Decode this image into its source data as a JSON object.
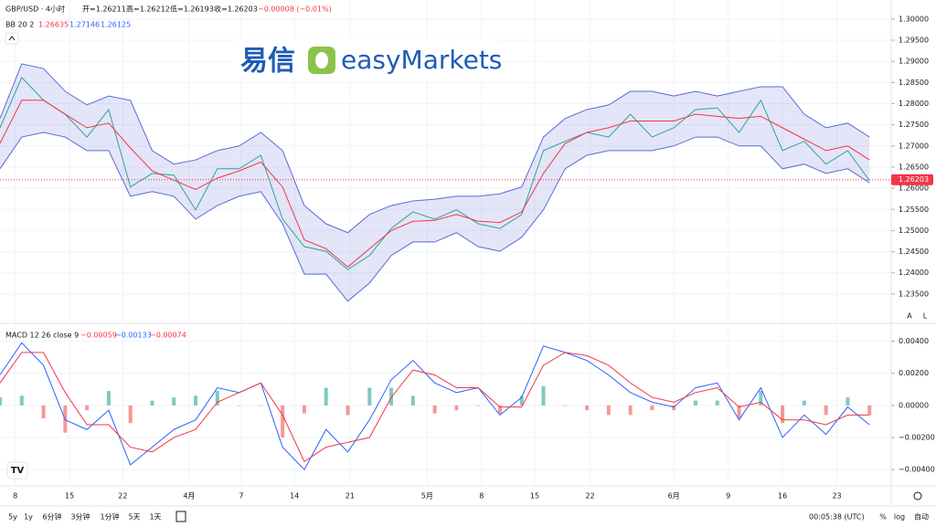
{
  "header": {
    "symbol": "GBP/USD · 4小时",
    "open": "开=1.26211",
    "high": "高=1.26212",
    "low": "低=1.26193",
    "close": "收=1.26203",
    "change": "−0.00008 (−0.01%)"
  },
  "bb_legend": {
    "name": "BB 20 2",
    "values": [
      "1.26635",
      "1.27146",
      "1.26125"
    ]
  },
  "macd_legend": {
    "name": "MACD 12 26 close 9",
    "values": [
      "−0.00059",
      "−0.00133",
      "−0.00074"
    ]
  },
  "logo": {
    "chinese": "易信",
    "brand": "easyMarkets"
  },
  "scale_buttons": [
    "A",
    "L"
  ],
  "toolbar": {
    "ranges": [
      "5y",
      "1y",
      "6分钟",
      "3分钟",
      "1分钟",
      "5天",
      "1天"
    ],
    "time": "00:05:38 (UTC)",
    "options": [
      "%",
      "log",
      "自动"
    ]
  },
  "chart_data": [
    {
      "type": "line",
      "last_price": 1.26203,
      "last_price_color": "#f23645",
      "band_fill": "rgba(120,123,220,0.2)",
      "x": [
        0,
        2,
        4,
        6,
        8,
        10,
        12,
        14,
        16,
        18,
        20,
        22,
        24,
        26,
        28,
        30,
        32,
        34,
        36,
        38,
        40,
        42,
        44,
        46,
        48,
        50,
        52,
        54,
        56,
        58,
        60,
        62,
        64,
        66,
        68,
        70,
        72,
        74,
        76,
        78,
        80
      ],
      "xlim": [
        0,
        82
      ],
      "xticks": [
        {
          "value": 1.4,
          "label": "8"
        },
        {
          "value": 6.4,
          "label": "15"
        },
        {
          "value": 11.3,
          "label": "22"
        },
        {
          "value": 17.4,
          "label": "4月"
        },
        {
          "value": 22.2,
          "label": "7"
        },
        {
          "value": 27.1,
          "label": "14"
        },
        {
          "value": 32.2,
          "label": "21"
        },
        {
          "value": 39.3,
          "label": "5月"
        },
        {
          "value": 44.3,
          "label": "8"
        },
        {
          "value": 49.2,
          "label": "15"
        },
        {
          "value": 54.3,
          "label": "22"
        },
        {
          "value": 62,
          "label": "6月"
        },
        {
          "value": 67,
          "label": "9"
        },
        {
          "value": 72,
          "label": "16"
        },
        {
          "value": 77,
          "label": "23"
        }
      ],
      "ylim": [
        1.2285,
        1.3045
      ],
      "yticks": [
        {
          "value": 1.3,
          "label": "1.30000"
        },
        {
          "value": 1.295,
          "label": "1.29500"
        },
        {
          "value": 1.29,
          "label": "1.29000"
        },
        {
          "value": 1.285,
          "label": "1.28500"
        },
        {
          "value": 1.28,
          "label": "1.28000"
        },
        {
          "value": 1.275,
          "label": "1.27500"
        },
        {
          "value": 1.27,
          "label": "1.27000"
        },
        {
          "value": 1.265,
          "label": "1.26500"
        },
        {
          "value": 1.26,
          "label": "1.26000"
        },
        {
          "value": 1.255,
          "label": "1.25500"
        },
        {
          "value": 1.25,
          "label": "1.25000"
        },
        {
          "value": 1.245,
          "label": "1.24500"
        },
        {
          "value": 1.24,
          "label": "1.24000"
        },
        {
          "value": 1.235,
          "label": "1.23500"
        }
      ],
      "grid": true,
      "series": [
        {
          "color": "#26a69a",
          "values": [
            1.2743,
            1.2862,
            1.2808,
            1.2775,
            1.2721,
            1.2786,
            1.2603,
            1.2635,
            1.2631,
            1.2549,
            1.2646,
            1.2646,
            1.2678,
            1.2527,
            1.2462,
            1.2451,
            1.2408,
            1.2441,
            1.2505,
            1.2544,
            1.2527,
            1.2549,
            1.2516,
            1.2505,
            1.2538,
            1.2689,
            1.2711,
            1.2732,
            1.2721,
            1.2775,
            1.2721,
            1.2743,
            1.2786,
            1.279,
            1.2732,
            1.2808,
            1.2689,
            1.2711,
            1.2657,
            1.2689,
            1.2618
          ]
        },
        {
          "color": "#5b6bd6",
          "band": "upper",
          "values": [
            1.2765,
            1.2894,
            1.2883,
            1.2829,
            1.2797,
            1.2818,
            1.2808,
            1.2689,
            1.2657,
            1.2667,
            1.2689,
            1.27,
            1.2732,
            1.2689,
            1.2559,
            1.2516,
            1.2495,
            1.2538,
            1.2559,
            1.257,
            1.2574,
            1.2581,
            1.2581,
            1.2587,
            1.2603,
            1.2721,
            1.2765,
            1.2786,
            1.2797,
            1.2829,
            1.2829,
            1.2818,
            1.2829,
            1.2818,
            1.2829,
            1.284,
            1.284,
            1.2775,
            1.2743,
            1.2754,
            1.2721
          ]
        },
        {
          "color": "#f23645",
          "values": [
            1.2706,
            1.2808,
            1.2808,
            1.2775,
            1.2743,
            1.2754,
            1.2695,
            1.2641,
            1.2619,
            1.2597,
            1.2624,
            1.2641,
            1.2662,
            1.2603,
            1.2478,
            1.2457,
            1.2414,
            1.2457,
            1.25,
            1.2522,
            1.2524,
            1.2538,
            1.2522,
            1.2519,
            1.2544,
            1.2635,
            1.2706,
            1.2732,
            1.2743,
            1.2759,
            1.2759,
            1.2759,
            1.2775,
            1.277,
            1.2765,
            1.277,
            1.2743,
            1.2716,
            1.2689,
            1.27,
            1.2667
          ]
        },
        {
          "color": "#5b6bd6",
          "band": "lower",
          "values": [
            1.2646,
            1.2721,
            1.2732,
            1.2721,
            1.2689,
            1.2689,
            1.2581,
            1.2592,
            1.2581,
            1.2527,
            1.2559,
            1.2581,
            1.2592,
            1.2516,
            1.2397,
            1.2397,
            1.2333,
            1.2376,
            1.2441,
            1.2473,
            1.2473,
            1.2495,
            1.2462,
            1.2451,
            1.2484,
            1.2549,
            1.2646,
            1.2678,
            1.2689,
            1.2689,
            1.2689,
            1.27,
            1.2721,
            1.2721,
            1.27,
            1.27,
            1.2646,
            1.2657,
            1.2635,
            1.2646,
            1.2613
          ]
        }
      ]
    },
    {
      "type": "line",
      "x": [
        0,
        2,
        4,
        6,
        8,
        10,
        12,
        14,
        16,
        18,
        20,
        22,
        24,
        26,
        28,
        30,
        32,
        34,
        36,
        38,
        40,
        42,
        44,
        46,
        48,
        50,
        52,
        54,
        56,
        58,
        60,
        62,
        64,
        66,
        68,
        70,
        72,
        74,
        76,
        78,
        80
      ],
      "ylim": [
        -0.0049,
        0.005
      ],
      "yticks": [
        {
          "value": 0.004,
          "label": "0.00400"
        },
        {
          "value": 0.002,
          "label": "0.00200"
        },
        {
          "value": 0,
          "label": "0.00000"
        },
        {
          "value": -0.002,
          "label": "−0.00200"
        },
        {
          "value": -0.004,
          "label": "−0.00400"
        }
      ],
      "grid": true,
      "series": [
        {
          "type": "bar",
          "color": "#26a69a",
          "negative_color": "#ef5350",
          "values": [
            0.0005,
            0.0006,
            -0.0008,
            -0.0017,
            -0.0003,
            0.0009,
            -0.0011,
            0.0003,
            0.0005,
            0.0006,
            0.0009,
            0,
            0,
            -0.002,
            -0.0005,
            0.0011,
            -0.0006,
            0.0011,
            0.0011,
            0.0006,
            -0.0005,
            -0.0003,
            0,
            -0.0005,
            0.0006,
            0.0012,
            0,
            -0.0003,
            -0.0006,
            -0.0006,
            -0.0003,
            -0.0003,
            0.0003,
            0.0003,
            -0.0008,
            0.0009,
            -0.0011,
            0.0003,
            -0.0006,
            0.0005,
            -0.0006
          ]
        },
        {
          "color": "#2962ff",
          "values": [
            0.0019,
            0.0039,
            0.0025,
            -0.0009,
            -0.0015,
            -0.0003,
            -0.0037,
            -0.0026,
            -0.0015,
            -0.0009,
            0.0011,
            0.0008,
            0.0014,
            -0.0026,
            -0.004,
            -0.0015,
            -0.0029,
            -0.0009,
            0.0016,
            0.0028,
            0.0014,
            0.0008,
            0.0011,
            -0.0006,
            0.0005,
            0.0037,
            0.0033,
            0.0028,
            0.0019,
            0.0008,
            0.0002,
            -0.0001,
            0.0011,
            0.0014,
            -0.0009,
            0.0011,
            -0.002,
            -0.0006,
            -0.0018,
            -0.0001,
            -0.0012
          ]
        },
        {
          "color": "#f23645",
          "values": [
            0.0014,
            0.0033,
            0.0033,
            0.0008,
            -0.0012,
            -0.0012,
            -0.0026,
            -0.0029,
            -0.002,
            -0.0015,
            0.0002,
            0.0008,
            0.0014,
            -0.0006,
            -0.0035,
            -0.0026,
            -0.0023,
            -0.002,
            0.0005,
            0.0022,
            0.0019,
            0.0011,
            0.0011,
            -0.0001,
            -0.0001,
            0.0025,
            0.0033,
            0.0031,
            0.0025,
            0.0014,
            0.0005,
            0.0002,
            0.0008,
            0.0011,
            -0.0001,
            0.0002,
            -0.0009,
            -0.0009,
            -0.0012,
            -0.0006,
            -0.0006
          ]
        }
      ]
    }
  ]
}
